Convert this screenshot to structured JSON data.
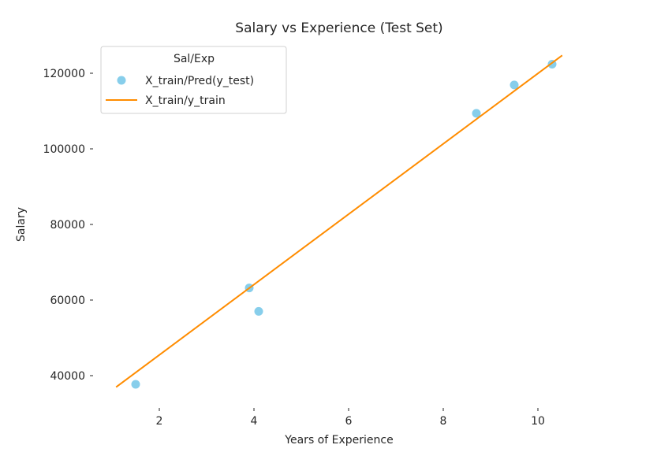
{
  "chart_data": {
    "type": "scatter",
    "title": "Salary vs Experience (Test Set)",
    "xlabel": "Years of Experience",
    "ylabel": "Salary",
    "xlim": [
      0.65,
      10.85
    ],
    "ylim": [
      32000,
      127000
    ],
    "grid": false,
    "legend_position": "upper left",
    "legend_title": "Sal/Exp",
    "x_ticks": [
      2,
      4,
      6,
      8,
      10
    ],
    "y_ticks": [
      40000,
      60000,
      80000,
      100000,
      120000
    ],
    "series": [
      {
        "name": "X_train/Pred(y_test)",
        "kind": "scatter",
        "color": "#87ceeb",
        "points": [
          {
            "x": 1.5,
            "y": 37700
          },
          {
            "x": 3.9,
            "y": 63200
          },
          {
            "x": 4.1,
            "y": 57000
          },
          {
            "x": 8.7,
            "y": 109400
          },
          {
            "x": 9.5,
            "y": 116900
          },
          {
            "x": 10.3,
            "y": 122400
          }
        ]
      },
      {
        "name": "X_train/y_train",
        "kind": "line",
        "color": "#ff8c00",
        "points": [
          {
            "x": 1.1,
            "y": 37100
          },
          {
            "x": 10.5,
            "y": 124600
          }
        ]
      }
    ]
  }
}
